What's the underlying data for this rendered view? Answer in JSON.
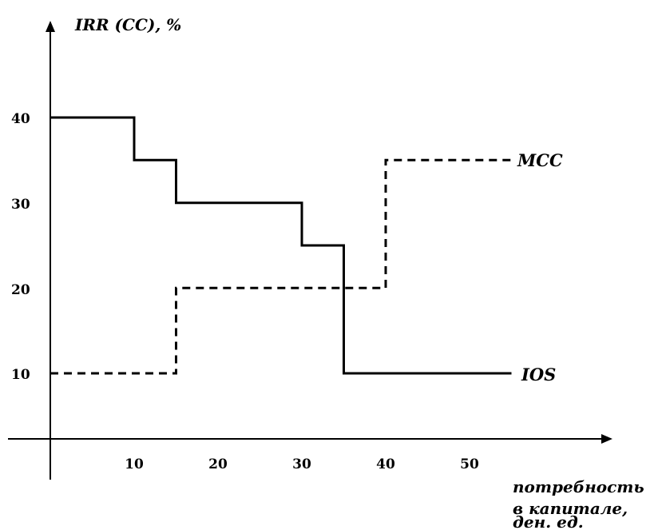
{
  "chart_data": {
    "type": "line",
    "ylabel": "IRR (CC), %",
    "xlabel": [
      "потребность",
      "в капитале,",
      "ден. ед."
    ],
    "xticks": [
      10,
      20,
      30,
      40,
      50
    ],
    "yticks": [
      10,
      20,
      30,
      40
    ],
    "xlim": [
      0,
      55
    ],
    "ylim": [
      0,
      40
    ],
    "step_style": "step-post",
    "series": [
      {
        "name": "IOS",
        "style": "solid",
        "x": [
          0,
          10,
          10,
          15,
          15,
          30,
          30,
          35,
          35,
          55
        ],
        "y": [
          40,
          40,
          35,
          35,
          30,
          30,
          25,
          25,
          10,
          10
        ]
      },
      {
        "name": "MCC",
        "style": "dashed",
        "x": [
          0,
          15,
          15,
          40,
          40,
          55
        ],
        "y": [
          10,
          10,
          20,
          20,
          35,
          35
        ]
      }
    ]
  }
}
